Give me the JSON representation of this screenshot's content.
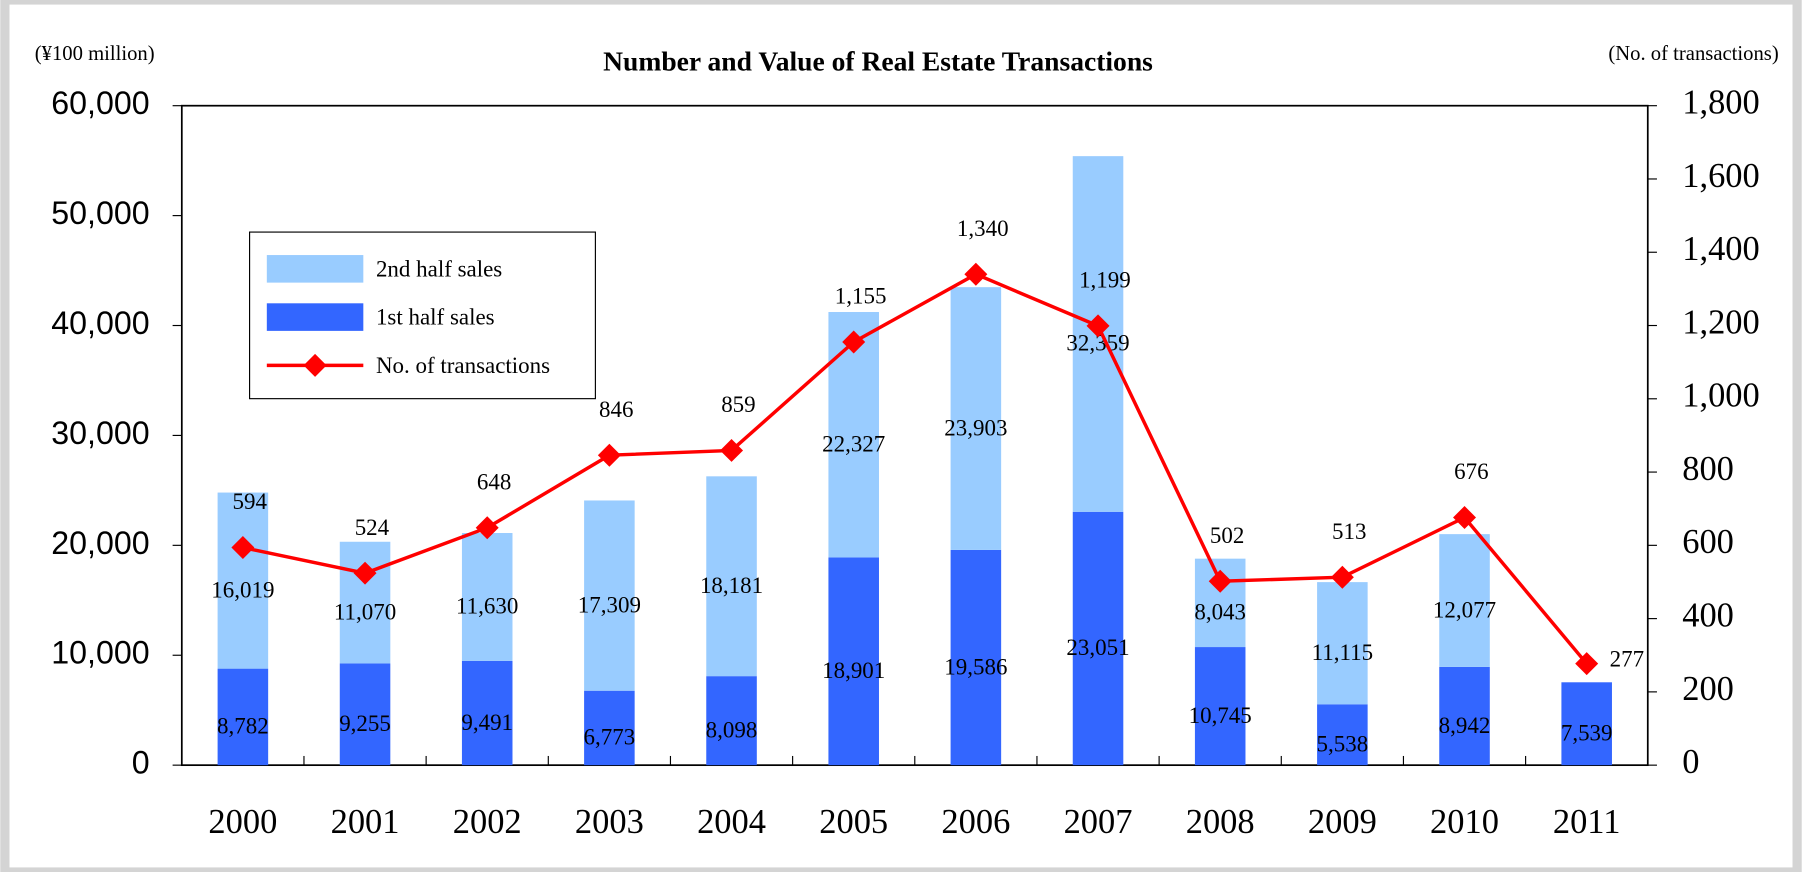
{
  "chart_data": {
    "type": "bar",
    "title": "Number and Value of Real Estate Transactions",
    "y_axis_label": "(¥100 million)",
    "y2_axis_label": "(No. of transactions)",
    "categories": [
      "2000",
      "2001",
      "2002",
      "2003",
      "2004",
      "2005",
      "2006",
      "2007",
      "2008",
      "2009",
      "2010",
      "2011"
    ],
    "stacked": true,
    "legend": "upper left",
    "series": [
      {
        "name": "1st half sales",
        "color": "#3366ff",
        "kind": "bar",
        "values": [
          8782,
          9255,
          9491,
          6773,
          8098,
          18901,
          19586,
          23051,
          10745,
          5538,
          8942,
          7539
        ],
        "value_labels": [
          "8,782",
          "9,255",
          "9,491",
          "6,773",
          "8,098",
          "18,901",
          "19,586",
          "23,051",
          "10,745",
          "5,538",
          "8,942",
          "7,539"
        ]
      },
      {
        "name": "2nd half sales",
        "color": "#99ccff",
        "kind": "bar",
        "values": [
          16019,
          11070,
          11630,
          17309,
          18181,
          22327,
          23903,
          32359,
          8043,
          11115,
          12077,
          null
        ],
        "value_labels": [
          "16,019",
          "11,070",
          "11,630",
          "17,309",
          "18,181",
          "22,327",
          "23,903",
          "32,359",
          "8,043",
          "11,115",
          "12,077",
          null
        ]
      },
      {
        "name": "No. of transactions",
        "color": "#ff0000",
        "kind": "line",
        "axis": "y2",
        "values": [
          594,
          524,
          648,
          846,
          859,
          1155,
          1340,
          1199,
          502,
          513,
          676,
          277
        ],
        "value_labels": [
          "594",
          "524",
          "648",
          "846",
          "859",
          "1,155",
          "1,340",
          "1,199",
          "502",
          "513",
          "676",
          "277"
        ]
      }
    ],
    "ylim": [
      0,
      60000
    ],
    "yticks": [
      0,
      {
        "value": 10000,
        "label": "10,000"
      },
      {
        "value": 20000,
        "label": "20,000"
      },
      {
        "value": 30000,
        "label": "30,000"
      },
      {
        "value": 40000,
        "label": "40,000"
      },
      {
        "value": 50000,
        "label": "50,000"
      },
      {
        "value": 60000,
        "label": "60,000"
      }
    ],
    "y2lim": [
      0,
      1800
    ],
    "y2ticks": [
      0,
      200,
      400,
      600,
      800,
      {
        "value": 1000,
        "label": "1,000"
      },
      {
        "value": 1200,
        "label": "1,200"
      },
      {
        "value": 1400,
        "label": "1,400"
      },
      {
        "value": 1600,
        "label": "1,600"
      },
      {
        "value": 1800,
        "label": "1,800"
      }
    ],
    "grid": false
  }
}
